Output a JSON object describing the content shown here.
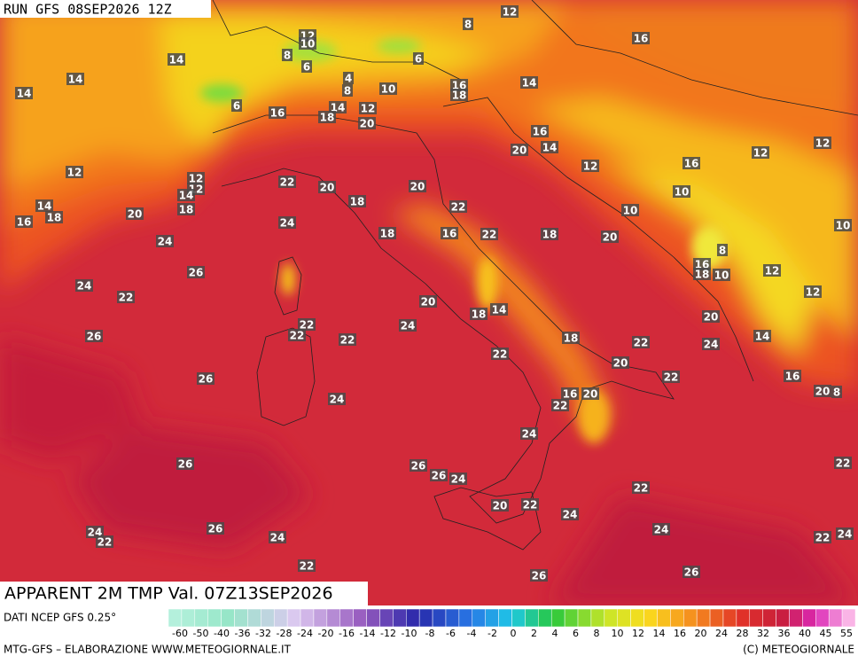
{
  "header": {
    "run": "RUN GFS 08SEP2026 12Z"
  },
  "map": {
    "labels": [
      8,
      12,
      16,
      12,
      10,
      14,
      8,
      6,
      14,
      14,
      6,
      4,
      8,
      10,
      16,
      18,
      14,
      6,
      16,
      14,
      18,
      12,
      20,
      16,
      14,
      20,
      12,
      12,
      12,
      16,
      12,
      12,
      12,
      14,
      18,
      22,
      20,
      20,
      10,
      14,
      18,
      20,
      18,
      22,
      10,
      16,
      24,
      18,
      16,
      22,
      18,
      20,
      10,
      24,
      8,
      16,
      18,
      10,
      12,
      26,
      24,
      22,
      12,
      20,
      14,
      18,
      20,
      22,
      24,
      22,
      26,
      22,
      18,
      22,
      24,
      14,
      22,
      20,
      22,
      26,
      16,
      20,
      8,
      16,
      20,
      24,
      22,
      24,
      26,
      26,
      26,
      24,
      22,
      22,
      20,
      22,
      24,
      24,
      22,
      26,
      24,
      24,
      22,
      24,
      22,
      26,
      26
    ]
  },
  "legend": {
    "title": "APPARENT 2M TMP Val. 07Z13SEP2026",
    "source": "DATI NCEP GFS 0.25°",
    "ticks": [
      -60,
      -50,
      -40,
      -36,
      -32,
      -28,
      -24,
      -20,
      -16,
      -14,
      -12,
      -10,
      -8,
      -6,
      -4,
      -2,
      0,
      2,
      4,
      6,
      8,
      10,
      12,
      14,
      16,
      20,
      24,
      28,
      32,
      36,
      40,
      45,
      55
    ]
  },
  "footer": {
    "left": "MTG-GFS – ELABORAZIONE WWW.METEOGIORNALE.IT",
    "right": "(C) METEOGIORNALE"
  }
}
